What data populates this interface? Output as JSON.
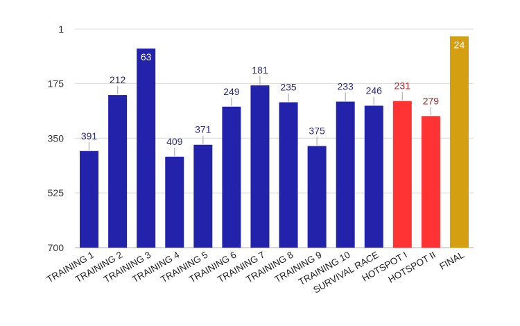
{
  "chart_data": {
    "type": "bar",
    "title": "",
    "xlabel": "",
    "ylabel": "",
    "y_axis": {
      "inverted": true,
      "ylim": [
        1,
        700
      ],
      "ticks": [
        1,
        175,
        350,
        525,
        700
      ]
    },
    "grid": true,
    "legend": "none",
    "categories": [
      "TRAINING 1",
      "TRAINING 2",
      "TRAINING 3",
      "TRAINING 4",
      "TRAINING 5",
      "TRAINING 6",
      "TRAINING 7",
      "TRAINING 8",
      "TRAINING 9",
      "TRAINING 10",
      "SURVIVAL RACE",
      "HOTSPOT I",
      "HOTSPOT II",
      "FINAL"
    ],
    "values": [
      391,
      212,
      63,
      409,
      371,
      249,
      181,
      235,
      375,
      233,
      246,
      231,
      279,
      24
    ],
    "bar_colors": [
      "#2222aa",
      "#2222aa",
      "#2222aa",
      "#2222aa",
      "#2222aa",
      "#2222aa",
      "#2222aa",
      "#2222aa",
      "#2222aa",
      "#2222aa",
      "#2222aa",
      "#ff3333",
      "#ff3333",
      "#d4a012"
    ],
    "label_colors": [
      "#2a2a7a",
      "#2a2a7a",
      "#ffffff",
      "#2a2a7a",
      "#2a2a7a",
      "#2a2a7a",
      "#2a2a7a",
      "#2a2a7a",
      "#2a2a7a",
      "#2a2a7a",
      "#2a2a7a",
      "#b22222",
      "#b22222",
      "#ffffff"
    ],
    "labels_inside": [
      false,
      false,
      true,
      false,
      false,
      false,
      false,
      false,
      false,
      false,
      false,
      false,
      false,
      true
    ]
  }
}
